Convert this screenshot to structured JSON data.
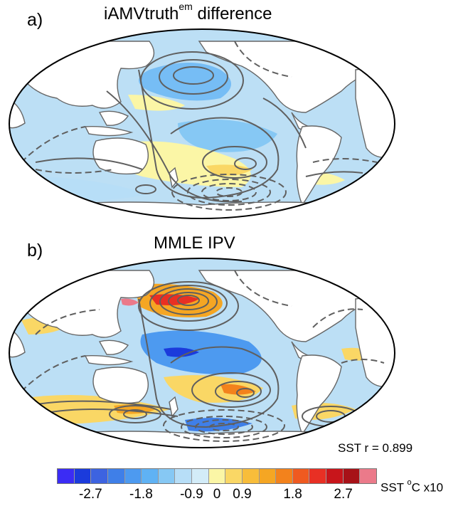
{
  "panels": [
    {
      "letter": "a)",
      "title_main": "iAMVtruth",
      "title_sup": "em",
      "title_rest": " difference"
    },
    {
      "letter": "b)",
      "title_main": "MMLE IPV",
      "title_sup": "",
      "title_rest": "",
      "stat_text": "SST r = 0.899"
    }
  ],
  "colorbar": {
    "colors": [
      "#3b2cf5",
      "#1b3bdc",
      "#3d63e0",
      "#3f7fe8",
      "#4d9af0",
      "#5fb2f4",
      "#86c8f4",
      "#b7def7",
      "#d3ecf8",
      "#fbf6a6",
      "#fad765",
      "#f8bd3a",
      "#f5a623",
      "#f3821c",
      "#ef5a20",
      "#e83024",
      "#c8151b",
      "#a71218",
      "#eb7a8a"
    ],
    "tick_labels": [
      "-2.7",
      "-1.8",
      "-0.9",
      "0",
      "0.9",
      "1.8",
      "2.7"
    ],
    "unit_prefix": "SST ",
    "unit_sup": "o",
    "unit_suffix": "C x10"
  },
  "palette": {
    "ocean": "#bcdff5",
    "land": "#ffffff",
    "coast": "#666666",
    "contour": "#5f5f5f"
  }
}
